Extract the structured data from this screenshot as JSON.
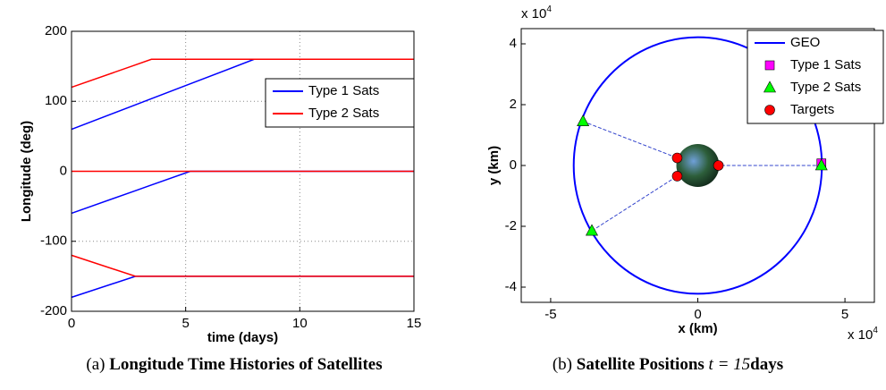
{
  "chart_data": [
    {
      "type": "line",
      "xlabel": "time (days)",
      "ylabel": "Longitude (deg)",
      "x": [
        0,
        2.8,
        3.5,
        5.2,
        8,
        15
      ],
      "xlim": [
        0,
        15
      ],
      "xticks": [
        0,
        5,
        10,
        15
      ],
      "ylim": [
        -200,
        200
      ],
      "yticks": [
        -200,
        -100,
        0,
        100,
        200
      ],
      "grid": true,
      "legend": "upper right",
      "series": [
        {
          "name": "Type 1 Sats",
          "color": "#0000ff",
          "values": [
            [
              60,
              95,
              103.75,
              125,
              160,
              160
            ],
            [
              -60,
              -27.7,
              -19.6,
              0,
              0,
              0
            ],
            [
              -180,
              -150,
              -150,
              -150,
              -150,
              -150
            ]
          ]
        },
        {
          "name": "Type 2 Sats",
          "color": "#ff0000",
          "values": [
            [
              120,
              152,
              160,
              160,
              160,
              160
            ],
            [
              0,
              0,
              0,
              0,
              0,
              0
            ],
            [
              -120,
              -150,
              -150,
              -150,
              -150,
              -150
            ]
          ]
        }
      ]
    },
    {
      "type": "scatter",
      "xlabel": "x (km)",
      "ylabel": "y (km)",
      "x_multiplier": "x 10",
      "y_multiplier": "x 10",
      "multiplier_exp": "4",
      "xlim": [
        -6,
        6
      ],
      "xticks": [
        -5,
        0,
        5
      ],
      "ylim": [
        -4.5,
        4.5
      ],
      "yticks": [
        -4,
        -2,
        0,
        2,
        4
      ],
      "legend": "upper right",
      "series": [
        {
          "name": "GEO",
          "color": "#0000ff",
          "marker": "line",
          "radius": 4.2164
        },
        {
          "name": "Type 1 Sats",
          "color": "#ff00ff",
          "marker": "square",
          "x": [
            4.2
          ],
          "y": [
            0.07
          ]
        },
        {
          "name": "Type 2 Sats",
          "color": "#00ff00",
          "marker": "triangle",
          "x": [
            -3.9,
            -3.6,
            4.2
          ],
          "y": [
            1.45,
            -2.15,
            0
          ]
        },
        {
          "name": "Targets",
          "color": "#ff0000",
          "marker": "circle",
          "x": [
            -0.7,
            -0.7,
            0.7
          ],
          "y": [
            0.25,
            -0.35,
            0
          ]
        }
      ]
    }
  ],
  "captions": {
    "a_label": "(a)",
    "a_text": "Longitude Time Histories of Satellites",
    "b_label": "(b)",
    "b_text": "Satellite Positions",
    "b_math": "t = 15",
    "b_unit": "days"
  }
}
